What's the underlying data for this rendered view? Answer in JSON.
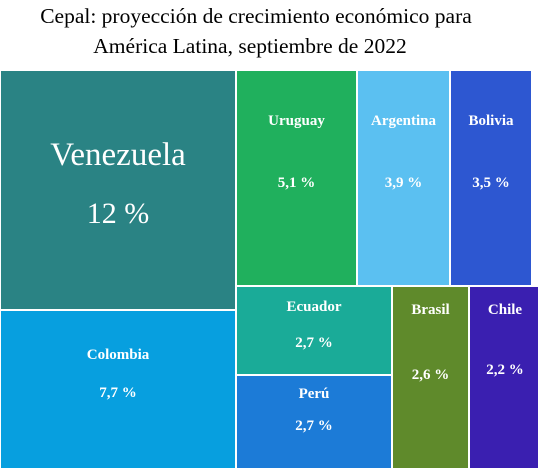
{
  "chart_data": {
    "type": "treemap",
    "title_lines": [
      "Cepal: proyección de crecimiento económico para",
      "América Latina, septiembre de 2022"
    ],
    "items": [
      {
        "name": "Venezuela",
        "value": 12,
        "label": "12 %",
        "color": "#2a8384"
      },
      {
        "name": "Colombia",
        "value": 7.7,
        "label": "7,7 %",
        "color": "#079fdf"
      },
      {
        "name": "Uruguay",
        "value": 5.1,
        "label": "5,1 %",
        "color": "#20b05d"
      },
      {
        "name": "Argentina",
        "value": 3.9,
        "label": "3,9 %",
        "color": "#5bc0f1"
      },
      {
        "name": "Bolivia",
        "value": 3.5,
        "label": "3,5 %",
        "color": "#2d57d1"
      },
      {
        "name": "Ecuador",
        "value": 2.7,
        "label": "2,7 %",
        "color": "#1aab98"
      },
      {
        "name": "Perú",
        "value": 2.7,
        "label": "2,7 %",
        "color": "#1c7bd7"
      },
      {
        "name": "Brasil",
        "value": 2.6,
        "label": "2,6  %",
        "color": "#5f8a2b"
      },
      {
        "name": "Chile",
        "value": 2.2,
        "label": "2,2 %",
        "color": "#3a1fb0"
      }
    ]
  }
}
